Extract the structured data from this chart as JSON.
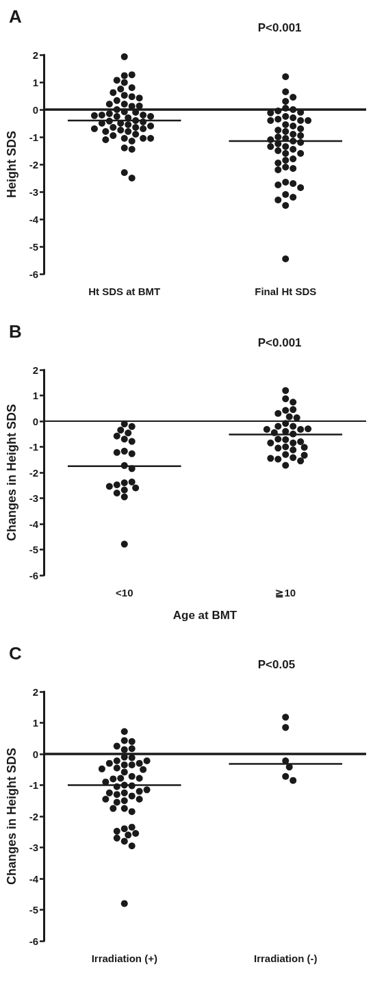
{
  "chart_data": [
    {
      "type": "scatter",
      "title": "A",
      "ylabel": "Height SDS",
      "annotations": [
        "P<0.001"
      ],
      "categories": [
        "Ht SDS at BMT",
        "Final Ht SDS"
      ],
      "ylim": [
        -6,
        2
      ],
      "yticks": [
        -6,
        -5,
        -4,
        -3,
        -2,
        -1,
        0,
        1,
        2
      ],
      "grid": false,
      "marker": "circle",
      "ref_lines": [
        {
          "axis": "y",
          "value": 0,
          "label": null
        }
      ],
      "series": [
        {
          "x": [
            "Ht SDS at BMT",
            "Ht SDS at BMT",
            "Ht SDS at BMT",
            "Ht SDS at BMT",
            "Ht SDS at BMT",
            "Ht SDS at BMT",
            "Ht SDS at BMT",
            "Ht SDS at BMT",
            "Ht SDS at BMT",
            "Ht SDS at BMT",
            "Ht SDS at BMT",
            "Ht SDS at BMT",
            "Ht SDS at BMT",
            "Ht SDS at BMT",
            "Ht SDS at BMT",
            "Ht SDS at BMT",
            "Ht SDS at BMT",
            "Ht SDS at BMT",
            "Ht SDS at BMT",
            "Ht SDS at BMT",
            "Ht SDS at BMT",
            "Ht SDS at BMT",
            "Ht SDS at BMT",
            "Ht SDS at BMT",
            "Ht SDS at BMT",
            "Ht SDS at BMT",
            "Ht SDS at BMT",
            "Ht SDS at BMT",
            "Ht SDS at BMT",
            "Ht SDS at BMT",
            "Ht SDS at BMT",
            "Ht SDS at BMT",
            "Ht SDS at BMT",
            "Ht SDS at BMT",
            "Ht SDS at BMT",
            "Ht SDS at BMT",
            "Ht SDS at BMT",
            "Ht SDS at BMT",
            "Ht SDS at BMT",
            "Ht SDS at BMT",
            "Ht SDS at BMT",
            "Ht SDS at BMT",
            "Ht SDS at BMT",
            "Ht SDS at BMT",
            "Ht SDS at BMT",
            "Ht SDS at BMT",
            "Ht SDS at BMT",
            "Ht SDS at BMT",
            "Ht SDS at BMT",
            "Ht SDS at BMT",
            "Ht SDS at BMT"
          ],
          "values": [
            1.93,
            1.24,
            1.27,
            0.99,
            1.07,
            0.8,
            0.75,
            0.62,
            0.52,
            0.47,
            0.42,
            0.33,
            0.2,
            0.12,
            0.13,
            0.2,
            0.0,
            -0.08,
            -0.1,
            -0.15,
            -0.2,
            -0.2,
            -0.25,
            -0.25,
            -0.22,
            -0.3,
            -0.4,
            -0.42,
            -0.45,
            -0.5,
            -0.5,
            -0.55,
            -0.6,
            -0.65,
            -0.65,
            -0.7,
            -0.7,
            -0.75,
            -0.8,
            -0.8,
            -0.9,
            -0.95,
            -1.05,
            -1.05,
            -1.1,
            -1.15,
            -1.05,
            -1.4,
            -1.45,
            -2.3,
            -2.5
          ],
          "color": "#1a1a1a"
        },
        {
          "x": [
            "Final Ht SDS",
            "Final Ht SDS",
            "Final Ht SDS",
            "Final Ht SDS",
            "Final Ht SDS",
            "Final Ht SDS",
            "Final Ht SDS",
            "Final Ht SDS",
            "Final Ht SDS",
            "Final Ht SDS",
            "Final Ht SDS",
            "Final Ht SDS",
            "Final Ht SDS",
            "Final Ht SDS",
            "Final Ht SDS",
            "Final Ht SDS",
            "Final Ht SDS",
            "Final Ht SDS",
            "Final Ht SDS",
            "Final Ht SDS",
            "Final Ht SDS",
            "Final Ht SDS",
            "Final Ht SDS",
            "Final Ht SDS",
            "Final Ht SDS",
            "Final Ht SDS",
            "Final Ht SDS",
            "Final Ht SDS",
            "Final Ht SDS",
            "Final Ht SDS",
            "Final Ht SDS",
            "Final Ht SDS",
            "Final Ht SDS",
            "Final Ht SDS",
            "Final Ht SDS",
            "Final Ht SDS",
            "Final Ht SDS",
            "Final Ht SDS",
            "Final Ht SDS",
            "Final Ht SDS",
            "Final Ht SDS",
            "Final Ht SDS",
            "Final Ht SDS",
            "Final Ht SDS",
            "Final Ht SDS",
            "Final Ht SDS",
            "Final Ht SDS",
            "Final Ht SDS",
            "Final Ht SDS"
          ],
          "values": [
            1.2,
            0.65,
            0.45,
            0.3,
            0.05,
            0.0,
            -0.05,
            -0.1,
            -0.12,
            -0.25,
            -0.3,
            -0.35,
            -0.4,
            -0.4,
            -0.4,
            -0.55,
            -0.6,
            -0.75,
            -0.8,
            -0.7,
            -0.9,
            -0.95,
            -1.0,
            -1.05,
            -1.1,
            -1.15,
            -1.2,
            -1.25,
            -1.35,
            -1.35,
            -1.45,
            -1.5,
            -1.6,
            -1.6,
            -1.8,
            -1.85,
            -1.95,
            -2.1,
            -2.15,
            -2.2,
            -2.65,
            -2.7,
            -2.75,
            -2.85,
            -3.1,
            -3.2,
            -3.3,
            -3.5,
            -5.45
          ],
          "color": "#1a1a1a"
        },
        {
          "type": "box",
          "boxes": [
            {
              "low": -0.4,
              "q1": -0.4,
              "median": -0.4,
              "q3": -0.4,
              "high": -0.4
            },
            {
              "low": -1.15,
              "q1": -1.15,
              "median": -1.15,
              "q3": -1.15,
              "high": -1.15
            }
          ],
          "color": "#1a1a1a"
        }
      ]
    },
    {
      "type": "scatter",
      "title": "B",
      "ylabel": "Changes in Height SDS",
      "xlabel": "Age at BMT",
      "annotations": [
        "P<0.001"
      ],
      "categories": [
        "<10",
        "≧10"
      ],
      "ylim": [
        -6,
        2
      ],
      "yticks": [
        -6,
        -5,
        -4,
        -3,
        -2,
        -1,
        0,
        1,
        2
      ],
      "grid": false,
      "marker": "circle",
      "ref_lines": [
        {
          "axis": "y",
          "value": 0,
          "label": null
        }
      ],
      "series": [
        {
          "x": [
            "<10",
            "<10",
            "<10",
            "<10",
            "<10",
            "<10",
            "<10",
            "<10",
            "<10",
            "<10",
            "<10",
            "<10",
            "<10",
            "<10",
            "<10",
            "<10",
            "<10",
            "<10",
            "<10",
            "<10",
            "<10"
          ],
          "values": [
            -0.11,
            -0.21,
            -0.35,
            -0.46,
            -0.58,
            -0.7,
            -0.79,
            -1.17,
            -1.27,
            -1.22,
            -1.73,
            -1.85,
            -2.4,
            -2.37,
            -2.48,
            -2.6,
            -2.54,
            -2.68,
            -2.8,
            -2.95,
            -4.79
          ],
          "color": "#1a1a1a"
        },
        {
          "x": [
            "≧10",
            "≧10",
            "≧10",
            "≧10",
            "≧10",
            "≧10",
            "≧10",
            "≧10",
            "≧10",
            "≧10",
            "≧10",
            "≧10",
            "≧10",
            "≧10",
            "≧10",
            "≧10",
            "≧10",
            "≧10",
            "≧10",
            "≧10",
            "≧10",
            "≧10",
            "≧10",
            "≧10",
            "≧10",
            "≧10",
            "≧10",
            "≧10",
            "≧10",
            "≧10",
            "≧10",
            "≧10",
            "≧10"
          ],
          "values": [
            1.19,
            0.87,
            0.74,
            0.42,
            0.45,
            0.3,
            0.17,
            0.13,
            -0.09,
            -0.2,
            -0.2,
            -0.32,
            -0.4,
            -0.5,
            -0.45,
            -0.32,
            -0.3,
            -0.72,
            -0.7,
            -0.85,
            -0.8,
            -0.85,
            -1.0,
            -1.05,
            -1.12,
            -1.02,
            -1.3,
            -1.42,
            -1.48,
            -1.72,
            -1.55,
            -1.45,
            -1.33
          ],
          "color": "#1a1a1a"
        },
        {
          "type": "box",
          "boxes": [
            {
              "low": -1.75,
              "q1": -1.75,
              "median": -1.75,
              "q3": -1.75,
              "high": -1.75
            },
            {
              "low": -0.52,
              "q1": -0.52,
              "median": -0.52,
              "q3": -0.52,
              "high": -0.52
            }
          ],
          "color": "#1a1a1a"
        }
      ]
    },
    {
      "type": "scatter",
      "title": "C",
      "ylabel": "Changes in Height SDS",
      "annotations": [
        "P<0.05"
      ],
      "categories": [
        "Irradiation (+)",
        "Irradiation (-)"
      ],
      "ylim": [
        -6,
        2
      ],
      "yticks": [
        -6,
        -5,
        -4,
        -3,
        -2,
        -1,
        0,
        1,
        2
      ],
      "grid": false,
      "marker": "circle",
      "ref_lines": [
        {
          "axis": "y",
          "value": 0,
          "label": null
        }
      ],
      "series": [
        {
          "x": [
            "Irradiation (+)",
            "Irradiation (+)",
            "Irradiation (+)",
            "Irradiation (+)",
            "Irradiation (+)",
            "Irradiation (+)",
            "Irradiation (+)",
            "Irradiation (+)",
            "Irradiation (+)",
            "Irradiation (+)",
            "Irradiation (+)",
            "Irradiation (+)",
            "Irradiation (+)",
            "Irradiation (+)",
            "Irradiation (+)",
            "Irradiation (+)",
            "Irradiation (+)",
            "Irradiation (+)",
            "Irradiation (+)",
            "Irradiation (+)",
            "Irradiation (+)",
            "Irradiation (+)",
            "Irradiation (+)",
            "Irradiation (+)",
            "Irradiation (+)",
            "Irradiation (+)",
            "Irradiation (+)",
            "Irradiation (+)",
            "Irradiation (+)",
            "Irradiation (+)",
            "Irradiation (+)",
            "Irradiation (+)",
            "Irradiation (+)",
            "Irradiation (+)",
            "Irradiation (+)",
            "Irradiation (+)",
            "Irradiation (+)",
            "Irradiation (+)",
            "Irradiation (+)",
            "Irradiation (+)",
            "Irradiation (+)",
            "Irradiation (+)",
            "Irradiation (+)",
            "Irradiation (+)",
            "Irradiation (+)",
            "Irradiation (+)",
            "Irradiation (+)",
            "Irradiation (+)"
          ],
          "values": [
            0.72,
            0.43,
            0.4,
            0.25,
            0.14,
            0.17,
            -0.1,
            -0.12,
            -0.22,
            -0.3,
            -0.35,
            -0.35,
            -0.3,
            -0.22,
            -0.45,
            -0.5,
            -0.58,
            -0.48,
            -0.72,
            -0.78,
            -0.8,
            -0.78,
            -0.9,
            -1.0,
            -1.02,
            -1.05,
            -1.2,
            -1.25,
            -1.35,
            -1.3,
            -1.25,
            -1.15,
            -1.45,
            -1.5,
            -1.45,
            -1.55,
            -1.75,
            -1.85,
            -1.75,
            -2.4,
            -2.35,
            -2.48,
            -2.6,
            -2.55,
            -2.8,
            -2.7,
            -2.95,
            -4.8
          ],
          "color": "#1a1a1a"
        },
        {
          "x": [
            "Irradiation (-)",
            "Irradiation (-)",
            "Irradiation (-)",
            "Irradiation (-)",
            "Irradiation (-)",
            "Irradiation (-)"
          ],
          "values": [
            1.18,
            0.85,
            -0.22,
            -0.42,
            -0.72,
            -0.85
          ],
          "color": "#1a1a1a"
        },
        {
          "type": "box",
          "boxes": [
            {
              "low": -1.0,
              "q1": -1.0,
              "median": -1.0,
              "q3": -1.0,
              "high": -1.0
            },
            {
              "low": -0.32,
              "q1": -0.32,
              "median": -0.32,
              "q3": -0.32,
              "high": -0.32
            }
          ],
          "color": "#1a1a1a"
        }
      ]
    }
  ]
}
